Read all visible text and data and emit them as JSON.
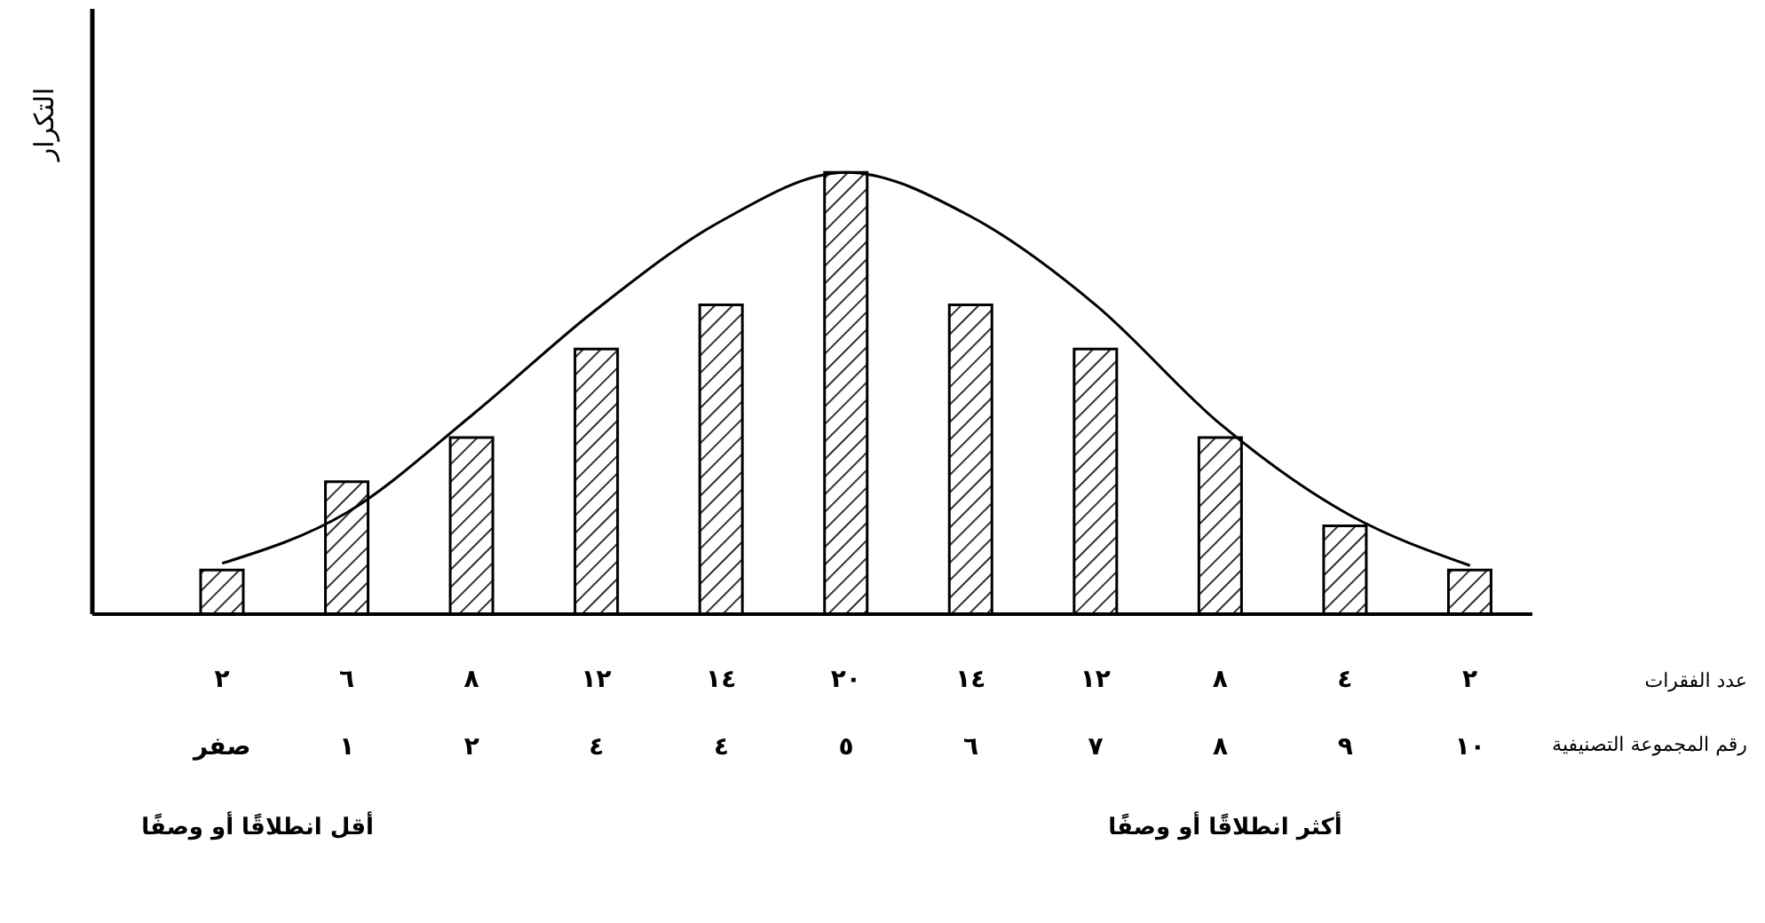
{
  "chart_data": {
    "type": "bar",
    "ylabel": "التكرار",
    "xlabel": "رقم المجموعة التصنيفية",
    "categories": [
      "صفر",
      "١",
      "٢",
      "٤",
      "٤",
      "٥",
      "٦",
      "٧",
      "٨",
      "٩",
      "١٠"
    ],
    "series": [
      {
        "name": "عدد الفقرات",
        "color": "#000000",
        "values": [
          2,
          6,
          8,
          12,
          14,
          20,
          14,
          12,
          8,
          4,
          2
        ],
        "value_labels": [
          "٢",
          "٦",
          "٨",
          "١٢",
          "١٤",
          "٢٠",
          "١٤",
          "١٢",
          "٨",
          "٤",
          "٢"
        ]
      },
      {
        "type": "line",
        "color": "#000000",
        "values": [
          2.3,
          4.6,
          9,
          13.8,
          17.8,
          20,
          18,
          14,
          8.6,
          4.6,
          2.2
        ]
      }
    ],
    "annotations": [
      "أقل انطلاقًا أو وصفًا",
      "أكثر انطلاقًا أو وصفًا"
    ],
    "grid": false,
    "legend": false,
    "marker": "none",
    "line_style": "solid"
  }
}
